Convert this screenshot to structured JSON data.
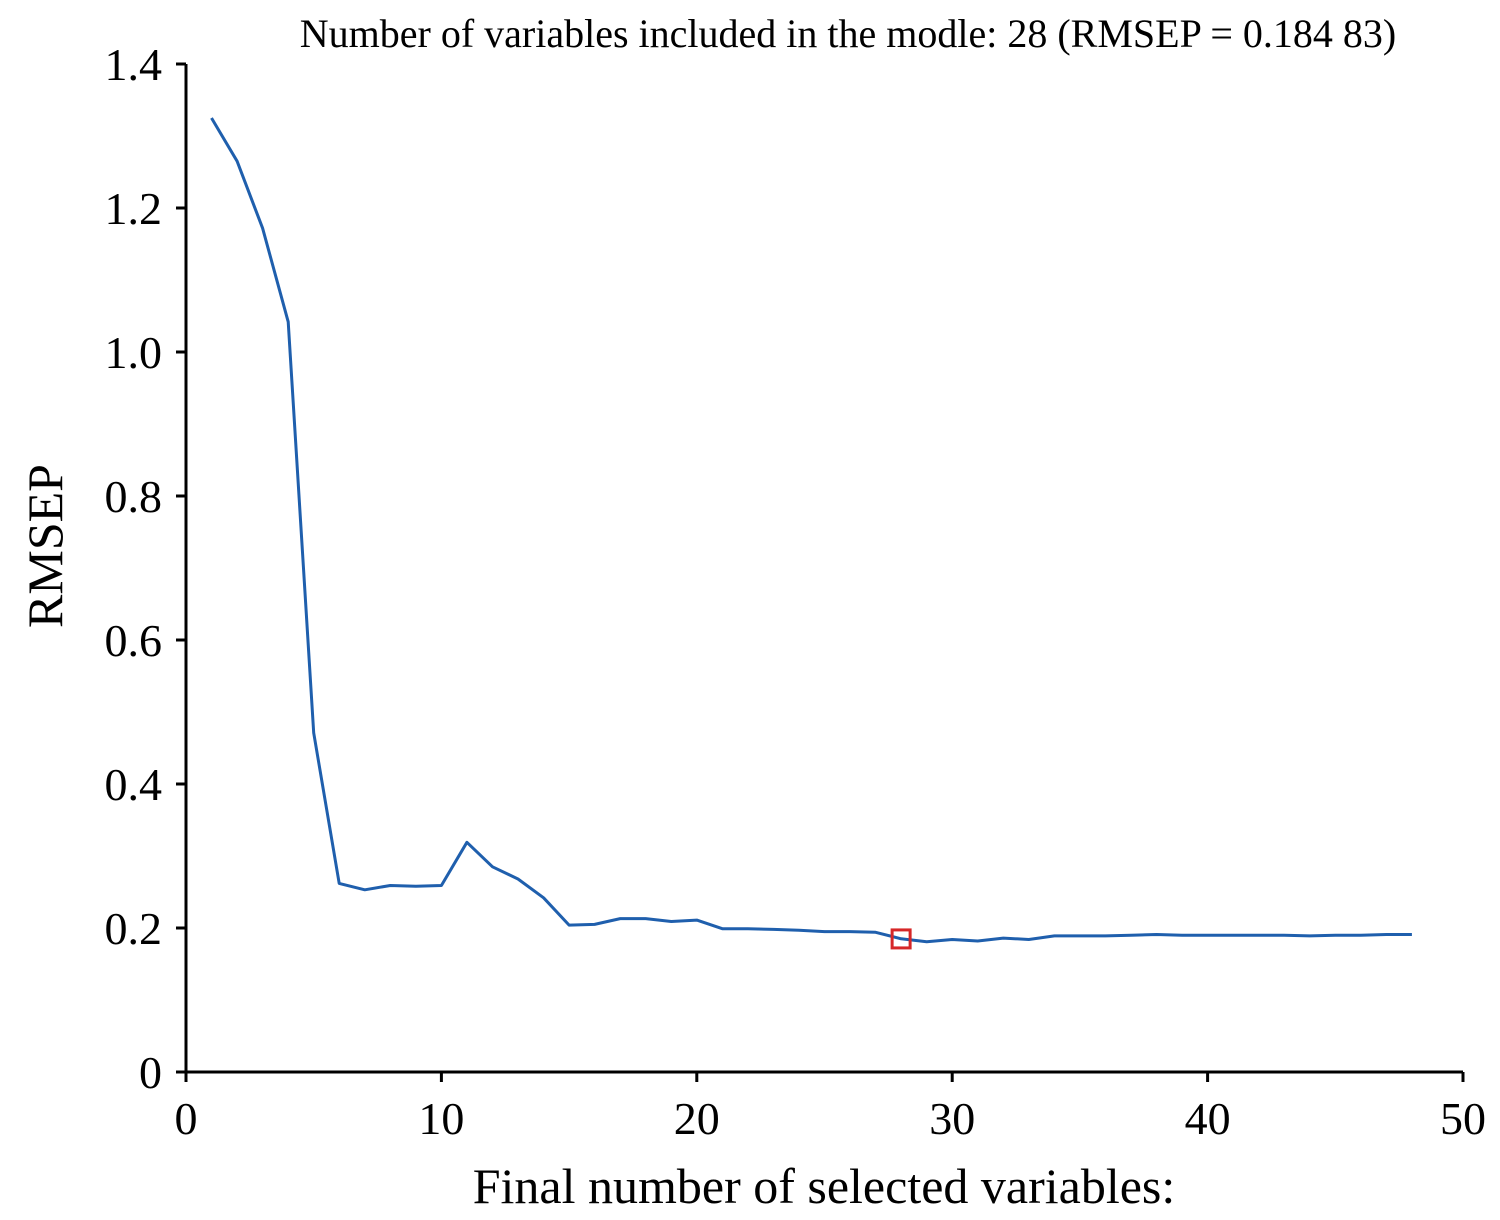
{
  "chart_data": {
    "type": "line",
    "title": "Number of variables included in the modle: 28  (RMSEP = 0.184 83)",
    "xlabel": "Final number of selected variables:",
    "ylabel": "RMSEP",
    "xlim": [
      0,
      50
    ],
    "ylim": [
      0,
      1.4
    ],
    "xticks": [
      0,
      10,
      20,
      30,
      40,
      50
    ],
    "xtick_labels": [
      "0",
      "10",
      "20",
      "30",
      "40",
      "50"
    ],
    "yticks": [
      0,
      0.2,
      0.4,
      0.6,
      0.8,
      1.0,
      1.2,
      1.4
    ],
    "ytick_labels": [
      "0",
      "0.2",
      "0.4",
      "0.6",
      "0.8",
      "1.0",
      "1.2",
      "1.4"
    ],
    "grid": false,
    "series": [
      {
        "color": "#1f5fad",
        "x": [
          1,
          2,
          3,
          4,
          5,
          6,
          7,
          8,
          9,
          10,
          11,
          12,
          13,
          14,
          15,
          16,
          17,
          18,
          19,
          20,
          21,
          22,
          23,
          24,
          25,
          26,
          27,
          28,
          29,
          30,
          31,
          32,
          33,
          34,
          35,
          36,
          37,
          38,
          39,
          40,
          41,
          42,
          43,
          44,
          45,
          46,
          47,
          48
        ],
        "values": [
          1.325,
          1.265,
          1.172,
          1.042,
          0.471,
          0.262,
          0.253,
          0.259,
          0.258,
          0.259,
          0.319,
          0.285,
          0.268,
          0.242,
          0.204,
          0.205,
          0.213,
          0.213,
          0.209,
          0.211,
          0.199,
          0.199,
          0.198,
          0.197,
          0.195,
          0.195,
          0.194,
          0.185,
          0.181,
          0.184,
          0.182,
          0.186,
          0.184,
          0.189,
          0.189,
          0.189,
          0.19,
          0.191,
          0.19,
          0.19,
          0.19,
          0.19,
          0.19,
          0.189,
          0.19,
          0.19,
          0.191,
          0.191
        ]
      }
    ],
    "highlight": {
      "x": 28,
      "y": 0.18483,
      "marker": "square",
      "color": "#d62728"
    }
  }
}
